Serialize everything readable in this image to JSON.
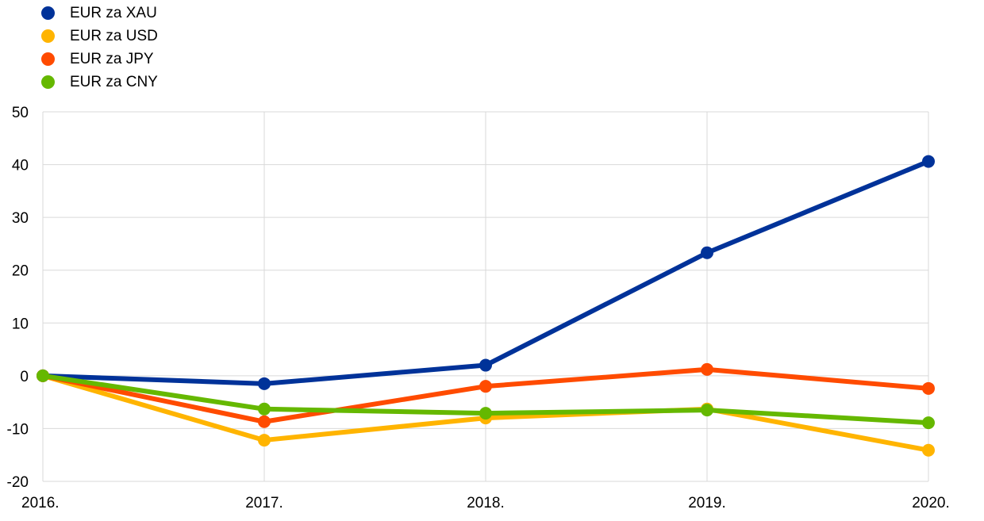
{
  "chart_data": {
    "type": "line",
    "categories": [
      "2016.",
      "2017.",
      "2018.",
      "2019.",
      "2020."
    ],
    "series": [
      {
        "name": "EUR za XAU",
        "color": "#003299",
        "values": [
          0,
          -1.5,
          2.0,
          23.3,
          40.6
        ]
      },
      {
        "name": "EUR za USD",
        "color": "#FFB400",
        "values": [
          0,
          -12.2,
          -8.0,
          -6.3,
          -14.1
        ]
      },
      {
        "name": "EUR za JPY",
        "color": "#FF4B00",
        "values": [
          0,
          -8.7,
          -2.0,
          1.2,
          -2.4
        ]
      },
      {
        "name": "EUR za CNY",
        "color": "#65B800",
        "values": [
          0,
          -6.3,
          -7.1,
          -6.5,
          -8.9
        ]
      }
    ],
    "yticks": [
      50,
      40,
      30,
      20,
      10,
      0,
      -10,
      -20
    ],
    "ylim": [
      -20,
      50
    ],
    "grid": true,
    "legend": "top-left"
  }
}
